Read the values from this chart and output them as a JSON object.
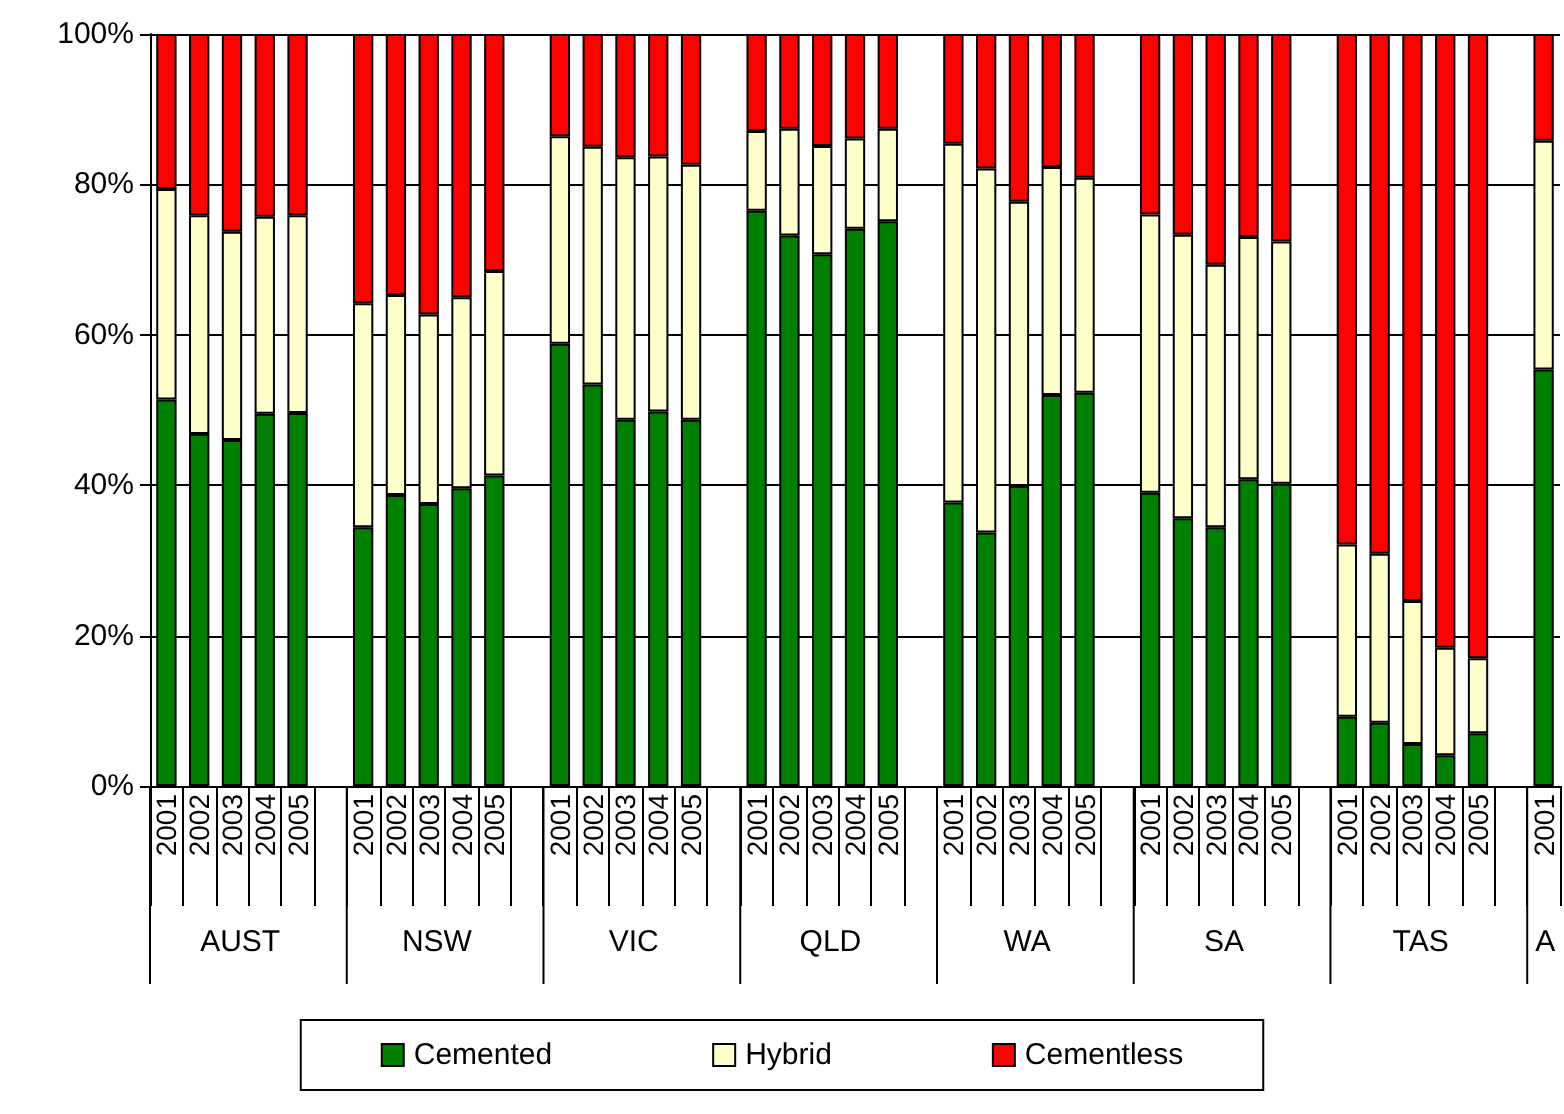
{
  "chart_data": {
    "type": "bar",
    "stacked": true,
    "categories": [
      "2001",
      "2002",
      "2003",
      "2004",
      "2005",
      null,
      "2001",
      "2002",
      "2003",
      "2004",
      "2005",
      null,
      "2001",
      "2002",
      "2003",
      "2004",
      "2005",
      null,
      "2001",
      "2002",
      "2003",
      "2004",
      "2005",
      null,
      "2001",
      "2002",
      "2003",
      "2004",
      "2005",
      null,
      "2001",
      "2002",
      "2003",
      "2004",
      "2005",
      null,
      "2001",
      "2002",
      "2003",
      "2004",
      "2005",
      null,
      "2001"
    ],
    "series": [
      {
        "name": "Cemented",
        "color": "#008000",
        "values": [
          51.4,
          46.8,
          46.0,
          49.5,
          49.6,
          null,
          34.4,
          38.7,
          37.5,
          39.6,
          41.3,
          null,
          58.8,
          53.4,
          48.7,
          49.8,
          48.7,
          null,
          76.5,
          73.2,
          70.7,
          74.1,
          75.1,
          null,
          37.7,
          33.7,
          39.9,
          52.0,
          52.3,
          null,
          39.0,
          35.6,
          34.4,
          40.8,
          40.2,
          null,
          9.2,
          8.4,
          5.6,
          4.1,
          7.0,
          null,
          55.4
        ]
      },
      {
        "name": "Hybrid",
        "color": "#ffffcc",
        "values": [
          28.0,
          29.1,
          27.7,
          26.2,
          26.3,
          null,
          29.8,
          26.6,
          25.2,
          25.4,
          27.2,
          null,
          27.6,
          31.6,
          34.9,
          33.9,
          33.9,
          null,
          10.6,
          14.2,
          14.4,
          12.0,
          12.3,
          null,
          47.7,
          48.4,
          37.8,
          30.3,
          28.6,
          null,
          37.0,
          37.7,
          34.9,
          32.2,
          32.2,
          null,
          22.9,
          22.5,
          19.0,
          14.3,
          10.0,
          null,
          30.4
        ]
      },
      {
        "name": "Cementless",
        "color": "#ff0000",
        "values": [
          20.6,
          24.1,
          26.3,
          24.3,
          24.1,
          null,
          35.8,
          34.7,
          37.3,
          35.0,
          31.5,
          null,
          13.6,
          15.0,
          16.4,
          16.3,
          17.4,
          null,
          12.9,
          12.6,
          14.9,
          13.9,
          12.6,
          null,
          14.6,
          17.9,
          22.3,
          17.7,
          19.1,
          null,
          24.0,
          26.7,
          30.7,
          27.0,
          27.6,
          null,
          67.9,
          69.1,
          75.4,
          81.6,
          83.0,
          null,
          14.2
        ]
      }
    ],
    "ylim": [
      0,
      100
    ],
    "yticks": [
      {
        "value": 0,
        "label": "0%"
      },
      {
        "value": 20,
        "label": "20%"
      },
      {
        "value": 40,
        "label": "40%"
      },
      {
        "value": 60,
        "label": "60%"
      },
      {
        "value": 80,
        "label": "80%"
      },
      {
        "value": 100,
        "label": "100%"
      }
    ],
    "grid": "y",
    "legend": "bottom",
    "annotations": [
      "AUST",
      "NSW",
      "VIC",
      "QLD",
      "WA",
      "SA",
      "TAS",
      "A"
    ]
  }
}
